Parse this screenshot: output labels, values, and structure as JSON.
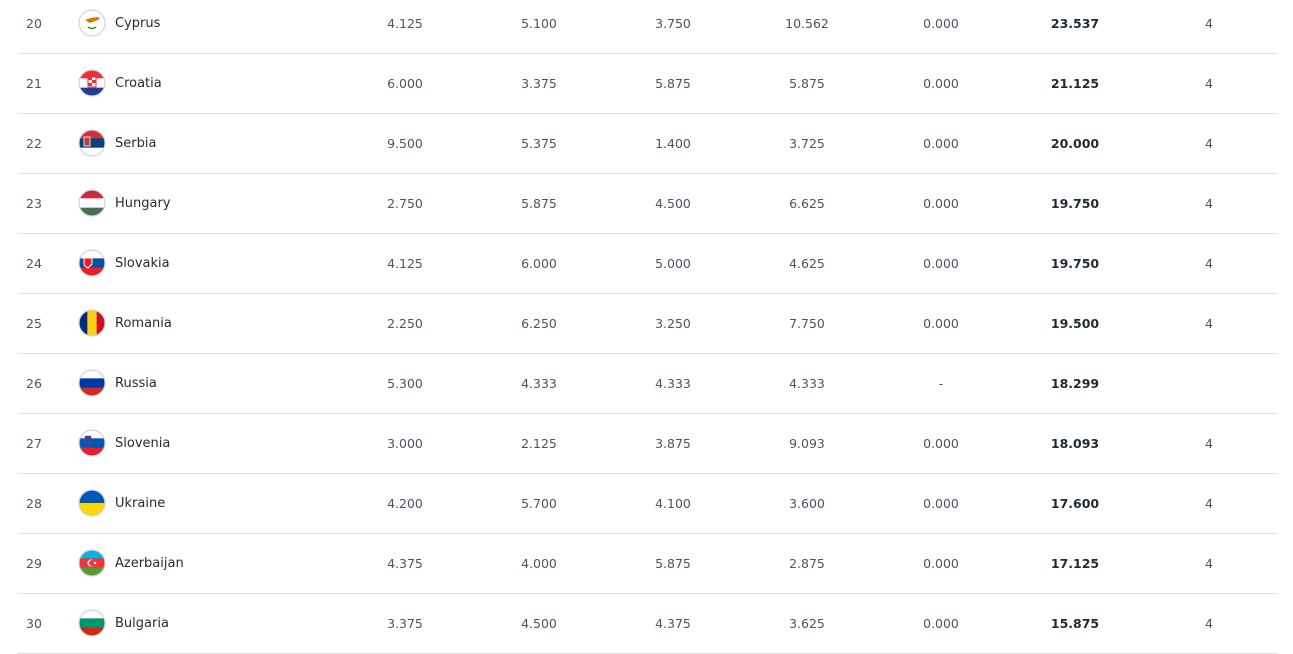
{
  "rows": [
    {
      "rank": "20",
      "country": "Cyprus",
      "flag": "cyprus-flag-icon",
      "s1": "4.125",
      "s2": "5.100",
      "s3": "3.750",
      "s4": "10.562",
      "s5": "0.000",
      "total": "23.537",
      "teams": "4"
    },
    {
      "rank": "21",
      "country": "Croatia",
      "flag": "croatia-flag-icon",
      "s1": "6.000",
      "s2": "3.375",
      "s3": "5.875",
      "s4": "5.875",
      "s5": "0.000",
      "total": "21.125",
      "teams": "4"
    },
    {
      "rank": "22",
      "country": "Serbia",
      "flag": "serbia-flag-icon",
      "s1": "9.500",
      "s2": "5.375",
      "s3": "1.400",
      "s4": "3.725",
      "s5": "0.000",
      "total": "20.000",
      "teams": "4"
    },
    {
      "rank": "23",
      "country": "Hungary",
      "flag": "hungary-flag-icon",
      "s1": "2.750",
      "s2": "5.875",
      "s3": "4.500",
      "s4": "6.625",
      "s5": "0.000",
      "total": "19.750",
      "teams": "4"
    },
    {
      "rank": "24",
      "country": "Slovakia",
      "flag": "slovakia-flag-icon",
      "s1": "4.125",
      "s2": "6.000",
      "s3": "5.000",
      "s4": "4.625",
      "s5": "0.000",
      "total": "19.750",
      "teams": "4"
    },
    {
      "rank": "25",
      "country": "Romania",
      "flag": "romania-flag-icon",
      "s1": "2.250",
      "s2": "6.250",
      "s3": "3.250",
      "s4": "7.750",
      "s5": "0.000",
      "total": "19.500",
      "teams": "4"
    },
    {
      "rank": "26",
      "country": "Russia",
      "flag": "russia-flag-icon",
      "s1": "5.300",
      "s2": "4.333",
      "s3": "4.333",
      "s4": "4.333",
      "s5": "-",
      "total": "18.299",
      "teams": ""
    },
    {
      "rank": "27",
      "country": "Slovenia",
      "flag": "slovenia-flag-icon",
      "s1": "3.000",
      "s2": "2.125",
      "s3": "3.875",
      "s4": "9.093",
      "s5": "0.000",
      "total": "18.093",
      "teams": "4"
    },
    {
      "rank": "28",
      "country": "Ukraine",
      "flag": "ukraine-flag-icon",
      "s1": "4.200",
      "s2": "5.700",
      "s3": "4.100",
      "s4": "3.600",
      "s5": "0.000",
      "total": "17.600",
      "teams": "4"
    },
    {
      "rank": "29",
      "country": "Azerbaijan",
      "flag": "azerbaijan-flag-icon",
      "s1": "4.375",
      "s2": "4.000",
      "s3": "5.875",
      "s4": "2.875",
      "s5": "0.000",
      "total": "17.125",
      "teams": "4"
    },
    {
      "rank": "30",
      "country": "Bulgaria",
      "flag": "bulgaria-flag-icon",
      "s1": "3.375",
      "s2": "4.500",
      "s3": "4.375",
      "s4": "3.625",
      "s5": "0.000",
      "total": "15.875",
      "teams": "4"
    }
  ],
  "flag_colors": {
    "Cyprus": [
      "#ffffff",
      "#ffffff",
      "#ffffff"
    ],
    "Croatia": [
      "#e8313a",
      "#ffffff",
      "#223e94"
    ],
    "Serbia": [
      "#c6363c",
      "#0c4076",
      "#ffffff"
    ],
    "Hungary": [
      "#cd2a3e",
      "#ffffff",
      "#436f4d"
    ],
    "Slovakia": [
      "#ffffff",
      "#0b4ea2",
      "#ee1c25"
    ],
    "Romania": [
      "#002b7f",
      "#fcd116",
      "#ce1126"
    ],
    "Russia": [
      "#ffffff",
      "#0039a6",
      "#d52b1e"
    ],
    "Slovenia": [
      "#ffffff",
      "#0057b8",
      "#ed1c24"
    ],
    "Ukraine": [
      "#0057b7",
      "#ffd700"
    ],
    "Azerbaijan": [
      "#00b5e2",
      "#ef3340",
      "#509e2f"
    ],
    "Bulgaria": [
      "#ffffff",
      "#00966e",
      "#d62612"
    ]
  },
  "vertical_flags": [
    "Romania"
  ]
}
